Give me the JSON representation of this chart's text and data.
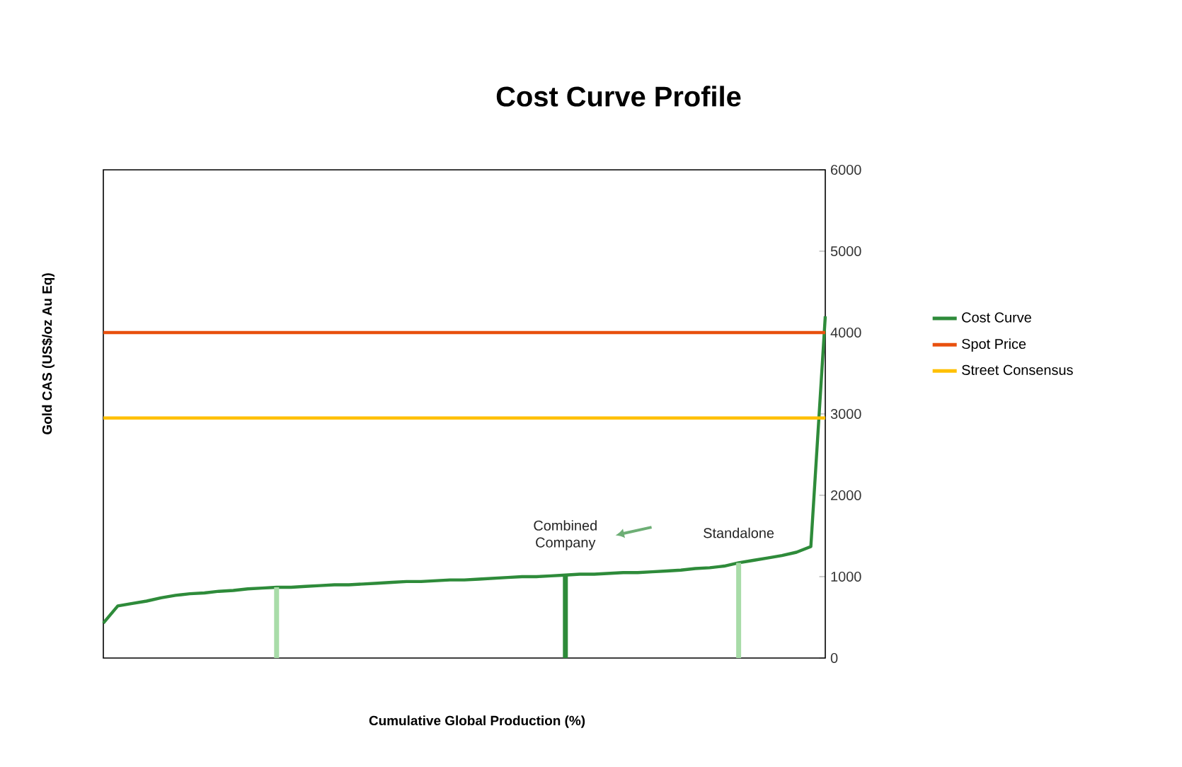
{
  "chart_data": {
    "type": "line",
    "title": "Cost Curve Profile",
    "xlabel": "Cumulative Global Production (%)",
    "ylabel": "Gold CAS (US$/oz Au Eq)",
    "categories": [
      null,
      null,
      null,
      null,
      null,
      null,
      null,
      null,
      null,
      null,
      null,
      null,
      null,
      null,
      null,
      null,
      null,
      null,
      null,
      null,
      null,
      null,
      null,
      null,
      null,
      null,
      null,
      null,
      null,
      null,
      null,
      null,
      null,
      null,
      null,
      null,
      null,
      null,
      null,
      null,
      null,
      null,
      null,
      null,
      null,
      null,
      null,
      null,
      null,
      null,
      null
    ],
    "ylim": [
      0,
      6000
    ],
    "yticks": [
      0,
      1000,
      2000,
      3000,
      4000,
      5000,
      6000
    ],
    "tick_labels": "y",
    "legend": "right",
    "marker": "none",
    "line_style": "solid",
    "series": [
      {
        "name": "Cost Curve",
        "color": "#2e8b3a",
        "values": [
          430,
          640,
          670,
          700,
          740,
          770,
          790,
          800,
          820,
          830,
          850,
          860,
          870,
          870,
          880,
          890,
          900,
          900,
          910,
          920,
          930,
          940,
          940,
          950,
          960,
          960,
          970,
          980,
          990,
          1000,
          1000,
          1010,
          1020,
          1030,
          1030,
          1040,
          1050,
          1050,
          1060,
          1070,
          1080,
          1100,
          1110,
          1130,
          1170,
          1200,
          1230,
          1260,
          1300,
          1370,
          4200
        ]
      },
      {
        "name": "Spot Price",
        "color": "#e8500e",
        "values": [
          4000,
          4000,
          4000,
          4000,
          4000,
          4000,
          4000,
          4000,
          4000,
          4000,
          4000,
          4000,
          4000,
          4000,
          4000,
          4000,
          4000,
          4000,
          4000,
          4000,
          4000,
          4000,
          4000,
          4000,
          4000,
          4000,
          4000,
          4000,
          4000,
          4000,
          4000,
          4000,
          4000,
          4000,
          4000,
          4000,
          4000,
          4000,
          4000,
          4000,
          4000,
          4000,
          4000,
          4000,
          4000,
          4000,
          4000,
          4000,
          4000,
          4000,
          4000
        ]
      },
      {
        "name": "Street Consensus",
        "color": "#ffc000",
        "values": [
          2950,
          2950,
          2950,
          2950,
          2950,
          2950,
          2950,
          2950,
          2950,
          2950,
          2950,
          2950,
          2950,
          2950,
          2950,
          2950,
          2950,
          2950,
          2950,
          2950,
          2950,
          2950,
          2950,
          2950,
          2950,
          2950,
          2950,
          2950,
          2950,
          2950,
          2950,
          2950,
          2950,
          2950,
          2950,
          2950,
          2950,
          2950,
          2950,
          2950,
          2950,
          2950,
          2950,
          2950,
          2950,
          2950,
          2950,
          2950,
          2950,
          2950,
          2950
        ]
      },
      {
        "type": "bar",
        "values": [
          null,
          null,
          null,
          null,
          null,
          null,
          null,
          null,
          null,
          null,
          null,
          null,
          870,
          null,
          null,
          null,
          null,
          null,
          null,
          null,
          null,
          null,
          null,
          null,
          null,
          null,
          null,
          null,
          null,
          null,
          null,
          null,
          1020,
          null,
          null,
          null,
          null,
          null,
          null,
          null,
          null,
          null,
          null,
          null,
          1170,
          null,
          null,
          null,
          null,
          null,
          null
        ],
        "colors": [
          null,
          null,
          null,
          null,
          null,
          null,
          null,
          null,
          null,
          null,
          null,
          null,
          "#a8dca8",
          null,
          null,
          null,
          null,
          null,
          null,
          null,
          null,
          null,
          null,
          null,
          null,
          null,
          null,
          null,
          null,
          null,
          null,
          null,
          "#2e8b3a",
          null,
          null,
          null,
          null,
          null,
          null,
          null,
          null,
          null,
          null,
          null,
          "#a8dca8",
          null,
          null,
          null,
          null,
          null,
          null
        ]
      }
    ],
    "annotations": [
      {
        "text": "Combined Company",
        "y": 1020
      },
      {
        "text": "Standalone",
        "y": 1170
      }
    ]
  }
}
